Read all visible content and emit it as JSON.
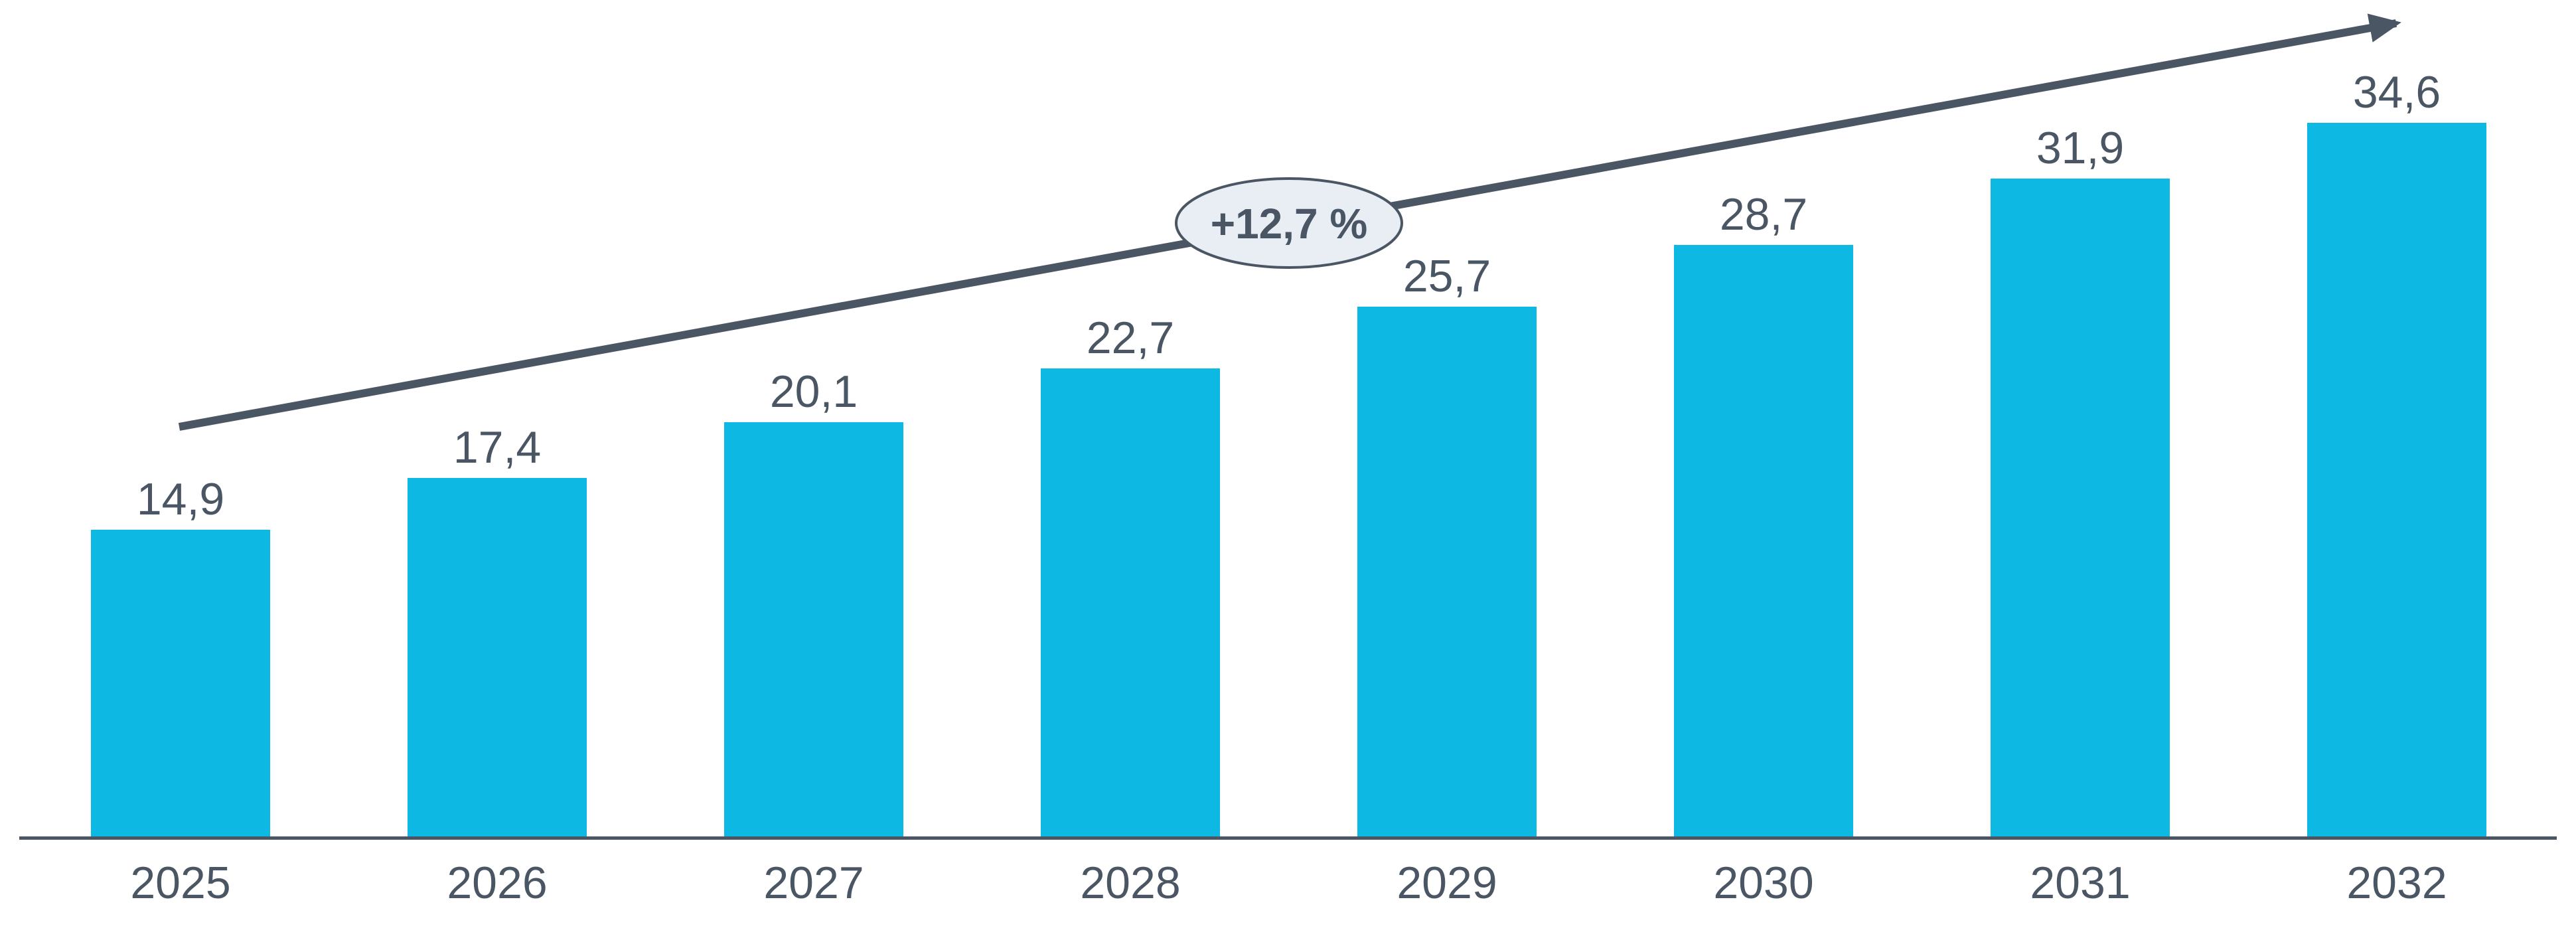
{
  "chart": {
    "background": "#ffffff",
    "colors": {
      "bar": "#0db8e3",
      "text": "#4a5663",
      "axis": "#4a5663",
      "arrow": "#4a5663",
      "badge_fill": "#e9eef4",
      "badge_border": "#4a5663"
    }
  },
  "chart_data": {
    "type": "bar",
    "title": "",
    "xlabel": "",
    "ylabel": "",
    "categories": [
      "2025",
      "2026",
      "2027",
      "2028",
      "2029",
      "2030",
      "2031",
      "2032"
    ],
    "values": [
      14.9,
      17.4,
      20.1,
      22.7,
      25.7,
      28.7,
      31.9,
      34.6
    ],
    "value_labels": [
      "14,9",
      "17,4",
      "20,1",
      "22,7",
      "25,7",
      "28,7",
      "31,9",
      "34,6"
    ],
    "growth_label": "+12,7 %",
    "ylim": [
      0,
      40.5
    ],
    "grid": false,
    "legend": null,
    "bar_color": "#0db8e3",
    "annotations": [
      {
        "text": "+12,7 %",
        "shape": "ellipse-on-trend-arrow",
        "meaning": "average annual growth rate"
      }
    ]
  }
}
